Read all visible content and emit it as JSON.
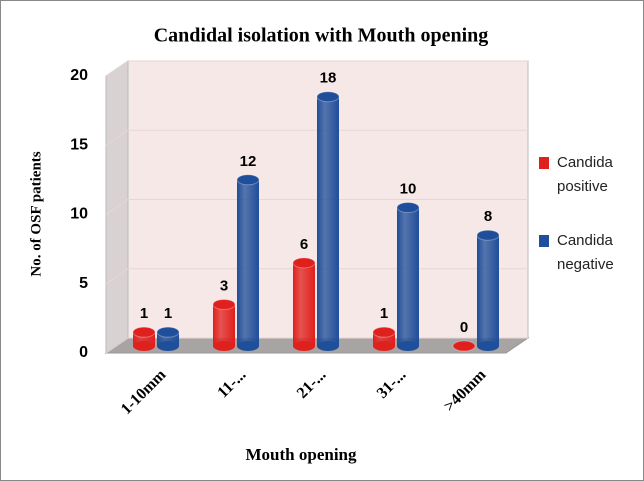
{
  "chart_data": {
    "type": "bar3d",
    "title": "Candidal isolation with Mouth opening",
    "x_label": "Mouth opening",
    "y_label": "No. of OSF  patients",
    "categories": [
      "1-10mm",
      "11-...",
      "21-...",
      "31-...",
      ">40mm"
    ],
    "series": [
      {
        "name": "Candida positive",
        "color": "#e0201c",
        "values": [
          1,
          3,
          6,
          1,
          0
        ]
      },
      {
        "name": "Candida negative",
        "color": "#1f4e9a",
        "values": [
          1,
          12,
          18,
          10,
          8
        ]
      }
    ],
    "ylim": [
      0,
      20
    ],
    "yticks": [
      0,
      5,
      10,
      15,
      20
    ],
    "grid": true,
    "legend": "right"
  }
}
